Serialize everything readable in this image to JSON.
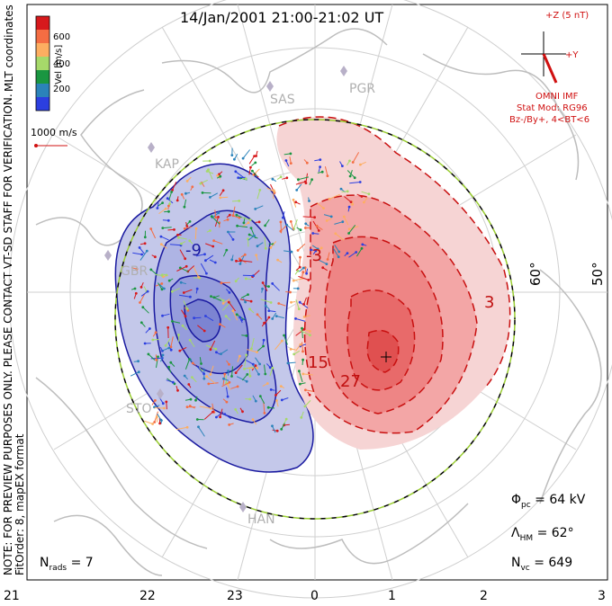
{
  "title": "14/Jan/2001 21:00-21:02 UT",
  "notes": {
    "preview": "NOTE: FOR PREVIEW PURPOSES ONLY. PLEASE CONTACT VT-SD STAFF FOR VERIFICATION.",
    "fit": "FitOrder: 8,  mapEX format",
    "coords": "MLT coordinates"
  },
  "colorbar": {
    "label": "Vel [m/s]",
    "ticks": [
      "600",
      "400",
      "200"
    ],
    "colors": [
      "#d7191c",
      "#f46d43",
      "#fdae61",
      "#a6d96a",
      "#1a9641",
      "#2b83ba",
      "#2c3fe0"
    ]
  },
  "reference_vector": {
    "label": "1000 m/s",
    "color": "#d01010"
  },
  "imf": {
    "z_label": "+Z (5 nT)",
    "y_label": "+Y",
    "source": "OMNI IMF",
    "model": "Stat Mod: RG96",
    "condition": "Bz-/By+, 4<BT<6",
    "color": "#d01010"
  },
  "stations": [
    "SAS",
    "PGR",
    "KAP",
    "GBR",
    "STO",
    "HAN"
  ],
  "latitude_labels": [
    "60°",
    "50°"
  ],
  "contour_labels": [
    "-3",
    "-9",
    "15",
    "27",
    "3"
  ],
  "stats": {
    "phi_pc": {
      "symbol": "Φ",
      "sub": "pc",
      "value": "= 64 kV"
    },
    "lambda_hm": {
      "symbol": "Λ",
      "sub": "HM",
      "value": "= 62°"
    },
    "n_vc": {
      "symbol": "N",
      "sub": "vc",
      "value": "= 649"
    },
    "n_rads": {
      "symbol": "N",
      "sub": "rads",
      "value": "= 7"
    }
  },
  "mlt_ticks": [
    "21",
    "22",
    "23",
    "0",
    "1",
    "2",
    "3"
  ],
  "colors": {
    "dusk_cell": "#b8bde6",
    "dusk_contour": "#1a1aa0",
    "dawn_cell": "#f08a8a",
    "dawn_contour": "#c81010",
    "hmb": "#9acd32",
    "grid": "#c8c8c8",
    "coast": "#bdbdbd"
  }
}
